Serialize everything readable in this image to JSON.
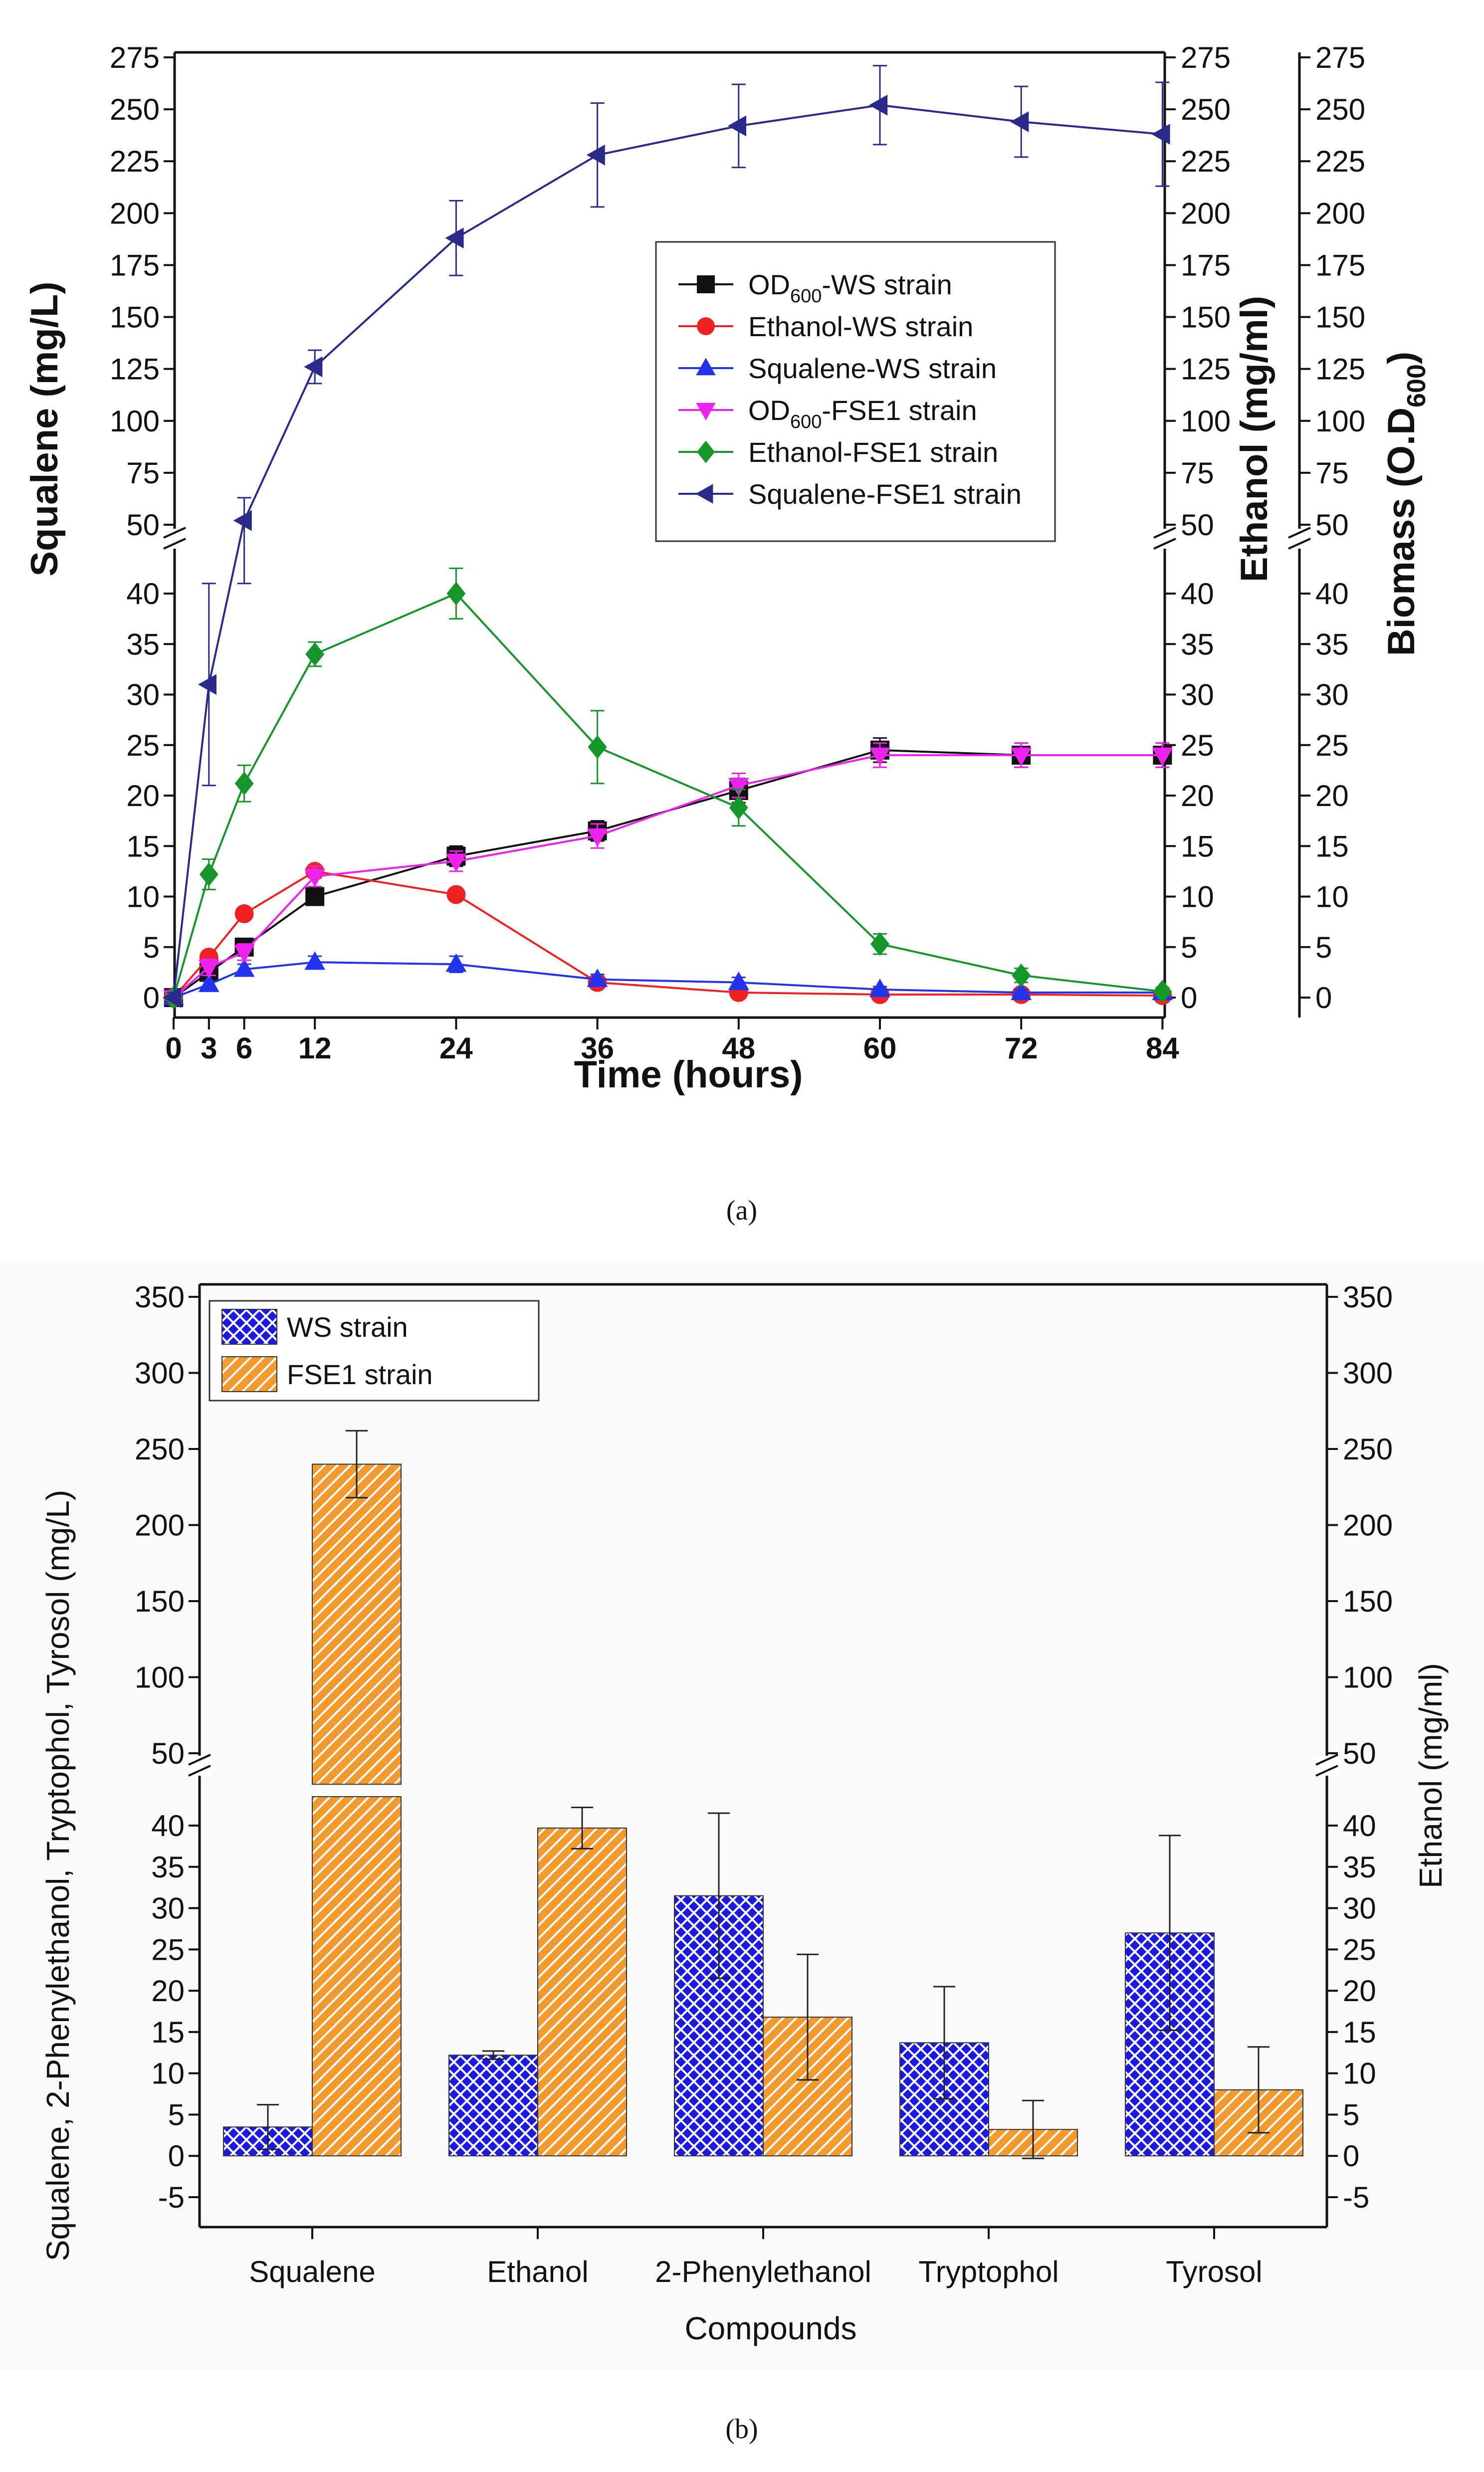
{
  "captions": {
    "a": "(a)",
    "b": "(b)"
  },
  "colors": {
    "od_ws": "#111111",
    "eth_ws": "#ee2222",
    "sq_ws": "#2233ee",
    "od_fse1": "#ee22ee",
    "eth_fse1": "#14962a",
    "sq_fse1": "#2a2a8c",
    "bar_ws": "#1a1ae0",
    "bar_fse1": "#f29a2e"
  },
  "chart_data": [
    {
      "id": "a",
      "type": "line",
      "title": "",
      "xlabel": "Time (hours)",
      "ylabel_left": "Squalene (mg/L)",
      "ylabel_right1": "Ethanol (mg/ml)",
      "ylabel_right2_main": "Biomass (O.D",
      "ylabel_right2_sub": "600",
      "ylabel_right2_end": ")",
      "xlim": [
        0,
        84
      ],
      "ylim_lower": [
        0,
        45
      ],
      "ylim_upper": [
        45,
        275
      ],
      "axis_break": true,
      "legend_position": "center-right",
      "x_ticks": [
        0,
        3,
        6,
        12,
        24,
        36,
        48,
        60,
        72,
        84
      ],
      "y_ticks_left": [
        0,
        5,
        10,
        15,
        20,
        25,
        30,
        35,
        40,
        50,
        75,
        100,
        125,
        150,
        175,
        200,
        225,
        250,
        275
      ],
      "y_ticks_right": [
        0,
        5,
        10,
        15,
        20,
        25,
        30,
        35,
        40,
        50,
        75,
        100,
        125,
        150,
        175,
        200,
        225,
        250,
        275
      ],
      "x": [
        0,
        3,
        6,
        12,
        24,
        36,
        48,
        60,
        72,
        84
      ],
      "series": [
        {
          "name": "OD600-WS strain",
          "label_main": "OD",
          "label_sub": "600",
          "label_end": "-WS strain",
          "color": "#111111",
          "marker": "square",
          "values": [
            0,
            2.5,
            5,
            10,
            14,
            16.5,
            20.5,
            24.5,
            24,
            24
          ],
          "errors": [
            0.5,
            0.5,
            0.8,
            0.8,
            1.0,
            1.0,
            1.2,
            1.2,
            1.2,
            1.2
          ]
        },
        {
          "name": "Ethanol-WS strain",
          "label_main": "Ethanol-WS strain",
          "color": "#ee2222",
          "marker": "circle",
          "values": [
            0,
            4,
            8.3,
            12.5,
            10.2,
            1.5,
            0.5,
            0.3,
            0.3,
            0.2
          ],
          "errors": [
            0.3,
            0.5,
            0.5,
            0.6,
            0.5,
            0.4,
            0.3,
            0.2,
            0.2,
            0.2
          ]
        },
        {
          "name": "Squalene-WS strain",
          "label_main": "Squalene-WS strain",
          "color": "#2233ee",
          "marker": "triangle-up",
          "values": [
            0,
            1.3,
            2.8,
            3.5,
            3.3,
            1.8,
            1.5,
            0.8,
            0.5,
            0.5
          ],
          "errors": [
            0.3,
            0.3,
            0.5,
            0.6,
            0.8,
            0.5,
            0.5,
            0.3,
            0.3,
            0.3
          ]
        },
        {
          "name": "OD600-FSE1 strain",
          "label_main": "OD",
          "label_sub": "600",
          "label_end": "-FSE1 strain",
          "color": "#ee22ee",
          "marker": "triangle-down",
          "values": [
            0,
            3,
            4.5,
            12,
            13.5,
            16,
            21,
            24,
            24,
            24
          ],
          "errors": [
            0.5,
            0.8,
            0.8,
            1.0,
            1.0,
            1.2,
            1.2,
            1.2,
            1.2,
            1.2
          ]
        },
        {
          "name": "Ethanol-FSE1 strain",
          "label_main": "Ethanol-FSE1 strain",
          "color": "#14962a",
          "marker": "diamond",
          "values": [
            0,
            12.2,
            21.2,
            34,
            40,
            24.8,
            18.8,
            5.3,
            2.2,
            0.6
          ],
          "errors": [
            0.5,
            1.5,
            1.8,
            1.2,
            2.5,
            3.6,
            1.8,
            1.0,
            0.7,
            0.4
          ]
        },
        {
          "name": "Squalene-FSE1 strain",
          "label_main": "Squalene-FSE1 strain",
          "color": "#2a2a8c",
          "marker": "triangle-left",
          "values": [
            0,
            31,
            52,
            126,
            188,
            228,
            242,
            252,
            244,
            238
          ],
          "errors": [
            0.5,
            10,
            11,
            8,
            18,
            25,
            20,
            19,
            17,
            25
          ]
        }
      ]
    },
    {
      "id": "b",
      "type": "bar",
      "title": "",
      "xlabel": "Compounds",
      "ylabel_left": "Squalene, 2-Phenylethanol, Tryptophol, Tyrosol (mg/L)",
      "ylabel_right": "Ethanol (mg/ml)",
      "categories": [
        "Squalene",
        "Ethanol",
        "2-Phenylethanol",
        "Tryptophol",
        "Tyrosol"
      ],
      "ylim_lower": [
        -5,
        45
      ],
      "ylim_upper": [
        45,
        350
      ],
      "axis_break": true,
      "legend_position": "top-left",
      "y_ticks_left": [
        -5,
        0,
        5,
        10,
        15,
        20,
        25,
        30,
        35,
        40,
        50,
        100,
        150,
        200,
        250,
        300,
        350
      ],
      "y_ticks_right": [
        -5,
        0,
        5,
        10,
        15,
        20,
        25,
        30,
        35,
        40,
        50,
        100,
        150,
        200,
        250,
        300,
        350
      ],
      "series": [
        {
          "name": "WS strain",
          "color": "#1a1ae0",
          "pattern": "crosshatch",
          "values": [
            3.5,
            12.2,
            31.5,
            13.7,
            27
          ],
          "errors": [
            2.7,
            0.5,
            10,
            6.8,
            11.8
          ]
        },
        {
          "name": "FSE1 strain",
          "color": "#f29a2e",
          "pattern": "diagonal",
          "values": [
            240,
            39.7,
            16.8,
            3.2,
            8
          ],
          "errors": [
            22,
            2.5,
            7.6,
            3.5,
            5.2
          ]
        }
      ]
    }
  ]
}
